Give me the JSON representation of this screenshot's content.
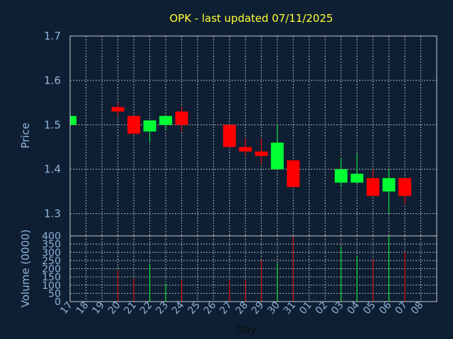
{
  "chart_data": {
    "type": "candlestick",
    "title": "OPK - last updated 07/11/2025",
    "ylabel": "Price",
    "volume_label": "Volume (0000)",
    "xlabel": "Day",
    "price_ylim": [
      1.25,
      1.7
    ],
    "price_ticks": [
      "1.7",
      "1.6",
      "1.5",
      "1.4",
      "1.3"
    ],
    "volume_ylim": [
      0,
      400
    ],
    "volume_ticks": [
      "400",
      "350",
      "300",
      "250",
      "200",
      "150",
      "100",
      "50",
      "0"
    ],
    "categories": [
      "17",
      "18",
      "19",
      "20",
      "21",
      "22",
      "23",
      "24",
      "25",
      "26",
      "27",
      "28",
      "29",
      "30",
      "31",
      "01",
      "02",
      "03",
      "04",
      "05",
      "06",
      "07",
      "08"
    ],
    "grid": true,
    "colors": {
      "up": "#00ff33",
      "down": "#ff0000",
      "title": "#ffff33",
      "axis_text": "#8fb4d9",
      "background": "#0f1f33"
    },
    "candles": [
      {
        "day": "17",
        "open": 1.5,
        "close": 1.52,
        "high": 1.52,
        "low": 1.5,
        "volume": 0
      },
      {
        "day": "20",
        "open": 1.54,
        "close": 1.53,
        "high": 1.55,
        "low": 1.52,
        "volume": 190
      },
      {
        "day": "21",
        "open": 1.52,
        "close": 1.48,
        "high": 1.52,
        "low": 1.48,
        "volume": 140
      },
      {
        "day": "22",
        "open": 1.485,
        "close": 1.51,
        "high": 1.51,
        "low": 1.46,
        "volume": 230
      },
      {
        "day": "23",
        "open": 1.5,
        "close": 1.52,
        "high": 1.52,
        "low": 1.49,
        "volume": 110
      },
      {
        "day": "24",
        "open": 1.53,
        "close": 1.5,
        "high": 1.54,
        "low": 1.485,
        "volume": 130
      },
      {
        "day": "27",
        "open": 1.5,
        "close": 1.45,
        "high": 1.5,
        "low": 1.45,
        "volume": 130
      },
      {
        "day": "28",
        "open": 1.45,
        "close": 1.44,
        "high": 1.47,
        "low": 1.43,
        "volume": 130
      },
      {
        "day": "29",
        "open": 1.44,
        "close": 1.43,
        "high": 1.47,
        "low": 1.41,
        "volume": 255
      },
      {
        "day": "30",
        "open": 1.4,
        "close": 1.46,
        "high": 1.5,
        "low": 1.4,
        "volume": 235
      },
      {
        "day": "31",
        "open": 1.42,
        "close": 1.36,
        "high": 1.42,
        "low": 1.36,
        "volume": 395
      },
      {
        "day": "03",
        "open": 1.37,
        "close": 1.4,
        "high": 1.425,
        "low": 1.36,
        "volume": 335
      },
      {
        "day": "04",
        "open": 1.37,
        "close": 1.39,
        "high": 1.435,
        "low": 1.37,
        "volume": 275
      },
      {
        "day": "05",
        "open": 1.38,
        "close": 1.34,
        "high": 1.4,
        "low": 1.34,
        "volume": 260
      },
      {
        "day": "06",
        "open": 1.35,
        "close": 1.38,
        "high": 1.4,
        "low": 1.3,
        "volume": 400
      },
      {
        "day": "07",
        "open": 1.38,
        "close": 1.34,
        "high": 1.38,
        "low": 1.32,
        "volume": 305
      }
    ]
  }
}
